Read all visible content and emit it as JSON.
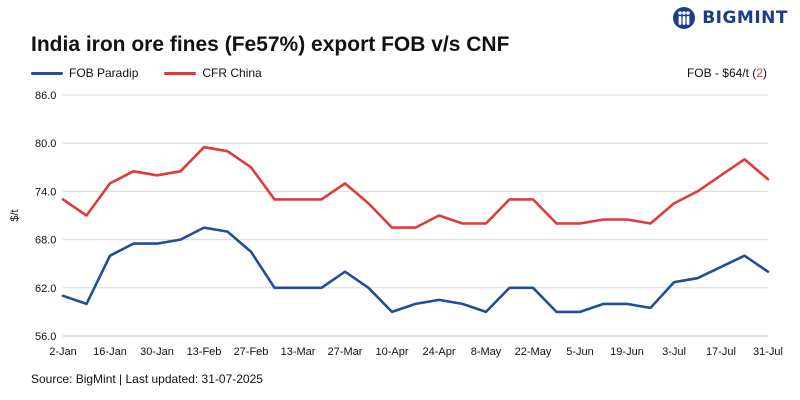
{
  "brand": {
    "name": "BIGMINT"
  },
  "title": "India iron ore fines (Fe57%) export FOB v/s CNF",
  "annotation": {
    "prefix": "FOB - $64/t (",
    "count": "2",
    "suffix": ")"
  },
  "source": "Source: BigMint | Last updated: 31-07-2025",
  "chart_data": {
    "type": "line",
    "title": "India iron ore fines (Fe57%) export FOB v/s CNF",
    "xlabel": "",
    "ylabel": "$/t",
    "ylim": [
      56,
      86
    ],
    "yticks": [
      "86.0",
      "80.0",
      "74.0",
      "68.0",
      "62.0",
      "56.0"
    ],
    "grid": true,
    "legend_position": "top-left",
    "x": [
      "2-Jan",
      "9-Jan",
      "16-Jan",
      "23-Jan",
      "30-Jan",
      "6-Feb",
      "13-Feb",
      "20-Feb",
      "27-Feb",
      "6-Mar",
      "13-Mar",
      "20-Mar",
      "27-Mar",
      "3-Apr",
      "10-Apr",
      "17-Apr",
      "24-Apr",
      "1-May",
      "8-May",
      "15-May",
      "22-May",
      "29-May",
      "5-Jun",
      "12-Jun",
      "19-Jun",
      "26-Jun",
      "3-Jul",
      "10-Jul",
      "17-Jul",
      "24-Jul",
      "31-Jul"
    ],
    "x_tick_labels": [
      "2-Jan",
      "16-Jan",
      "30-Jan",
      "13-Feb",
      "27-Feb",
      "13-Mar",
      "27-Mar",
      "10-Apr",
      "24-Apr",
      "8-May",
      "22-May",
      "5-Jun",
      "19-Jun",
      "3-Jul",
      "17-Jul",
      "31-Jul"
    ],
    "series": [
      {
        "name": "FOB Paradip",
        "color": "#1f4e9c",
        "values": [
          61,
          60,
          66,
          67.5,
          67.5,
          68,
          69.5,
          69,
          66.5,
          62,
          62,
          62,
          64,
          62,
          59,
          60,
          60.5,
          60,
          59,
          62,
          62,
          59,
          59,
          60,
          60,
          59.5,
          62.7,
          63.2,
          64.6,
          66,
          64
        ]
      },
      {
        "name": "CFR China",
        "color": "#e03a3a",
        "values": [
          73,
          71,
          75,
          76.5,
          76,
          76.5,
          79.5,
          79,
          77,
          73,
          73,
          73,
          75,
          72.5,
          69.5,
          69.5,
          71,
          70,
          70,
          73,
          73,
          70,
          70,
          70.5,
          70.5,
          70,
          72.5,
          74,
          76,
          78,
          75.5
        ]
      }
    ]
  }
}
